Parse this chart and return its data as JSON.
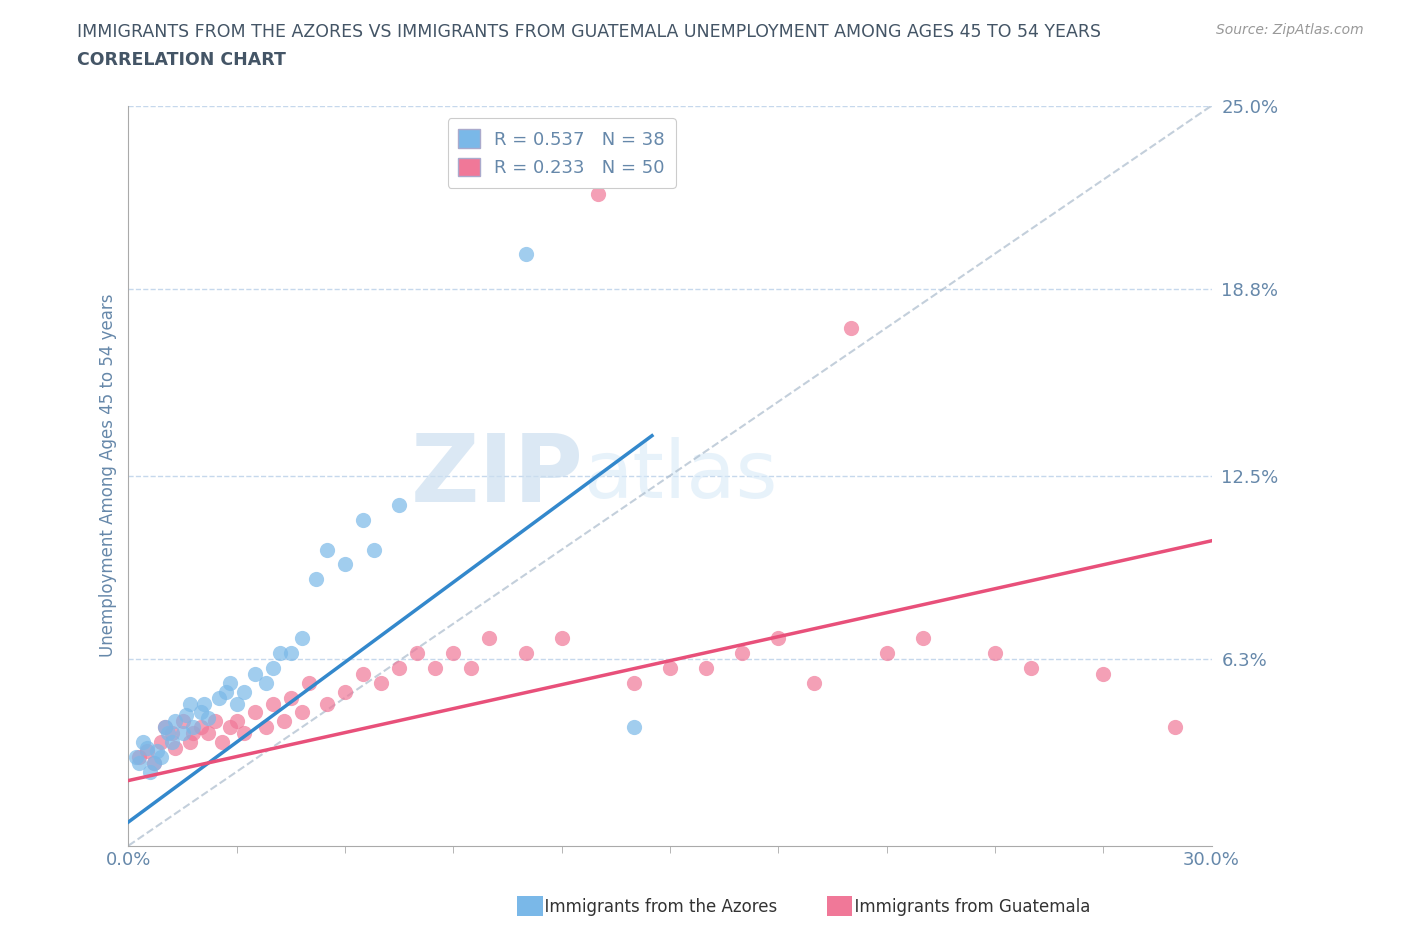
{
  "title_line1": "IMMIGRANTS FROM THE AZORES VS IMMIGRANTS FROM GUATEMALA UNEMPLOYMENT AMONG AGES 45 TO 54 YEARS",
  "title_line2": "CORRELATION CHART",
  "source": "Source: ZipAtlas.com",
  "ylabel": "Unemployment Among Ages 45 to 54 years",
  "xmin": 0.0,
  "xmax": 0.3,
  "ymin": 0.0,
  "ymax": 0.25,
  "ytick_vals": [
    0.063,
    0.125,
    0.188,
    0.25
  ],
  "ytick_labels": [
    "6.3%",
    "12.5%",
    "18.8%",
    "25.0%"
  ],
  "azores_color": "#7ab8e8",
  "guatemala_color": "#f07898",
  "azores_line_color": "#3388cc",
  "guatemala_line_color": "#e8507a",
  "azores_R": 0.537,
  "azores_N": 38,
  "guatemala_R": 0.233,
  "guatemala_N": 50,
  "watermark_zip": "ZIP",
  "watermark_atlas": "atlas",
  "background_color": "#ffffff",
  "grid_color": "#b8cfe8",
  "title_color": "#445566",
  "axis_label_color": "#6688aa",
  "tick_color": "#6688aa"
}
